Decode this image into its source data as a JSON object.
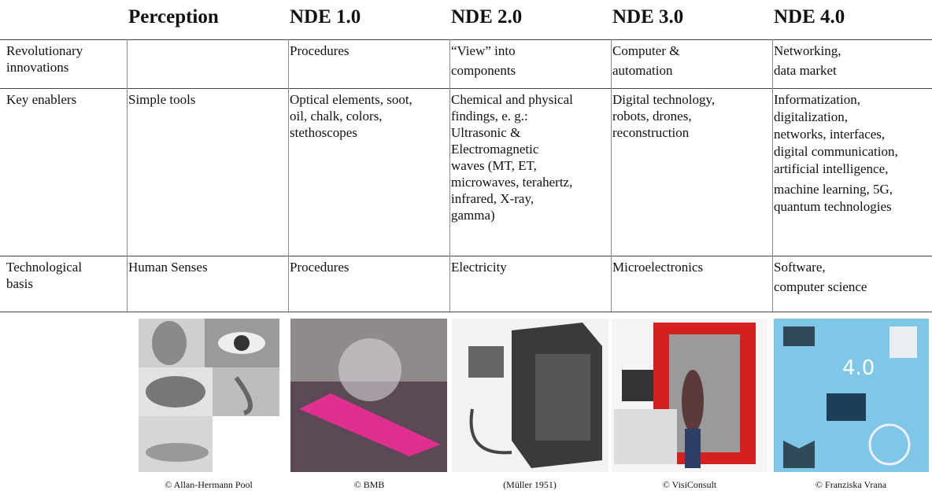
{
  "header": {
    "columns": [
      "Perception",
      "NDE 1.0",
      "NDE 2.0",
      "NDE 3.0",
      "NDE 4.0"
    ]
  },
  "table": {
    "rows": [
      {
        "label": [
          "Revolutionary",
          "innovations"
        ],
        "cells": [
          null,
          [
            "Procedures"
          ],
          [
            "“View” into",
            "components"
          ],
          [
            "Computer &",
            "automation"
          ],
          [
            "Networking,",
            "data market"
          ]
        ]
      },
      {
        "label": [
          "Key enablers"
        ],
        "cells": [
          [
            "Simple tools"
          ],
          [
            "Optical elements, soot,",
            "oil, chalk, colors,",
            "stethoscopes"
          ],
          [
            "Chemical and physical",
            "findings, e. g.:",
            "Ultrasonic &",
            "Electromagnetic",
            "waves (MT, ET,",
            "microwaves, terahertz,",
            "infrared, X-ray,",
            "gamma)"
          ],
          [
            "Digital technology,",
            "robots, drones,",
            "reconstruction"
          ],
          [
            "Informatization,",
            "digitalization,",
            "networks, interfaces,",
            "digital communication,",
            "artificial intelligence,",
            "machine learning, 5G,",
            "quantum technologies"
          ]
        ]
      },
      {
        "label": [
          "Technological",
          "basis"
        ],
        "cells": [
          [
            "Human Senses"
          ],
          [
            "Procedures"
          ],
          [
            "Electricity"
          ],
          [
            "Microelectronics"
          ],
          [
            "Software,",
            "computer science"
          ]
        ]
      }
    ]
  },
  "images": {
    "captions": [
      "© Allan-Hermann Pool",
      "© BMB",
      "(Müller 1951)",
      "© VisiConsult",
      "© Franziska Vrana"
    ]
  }
}
